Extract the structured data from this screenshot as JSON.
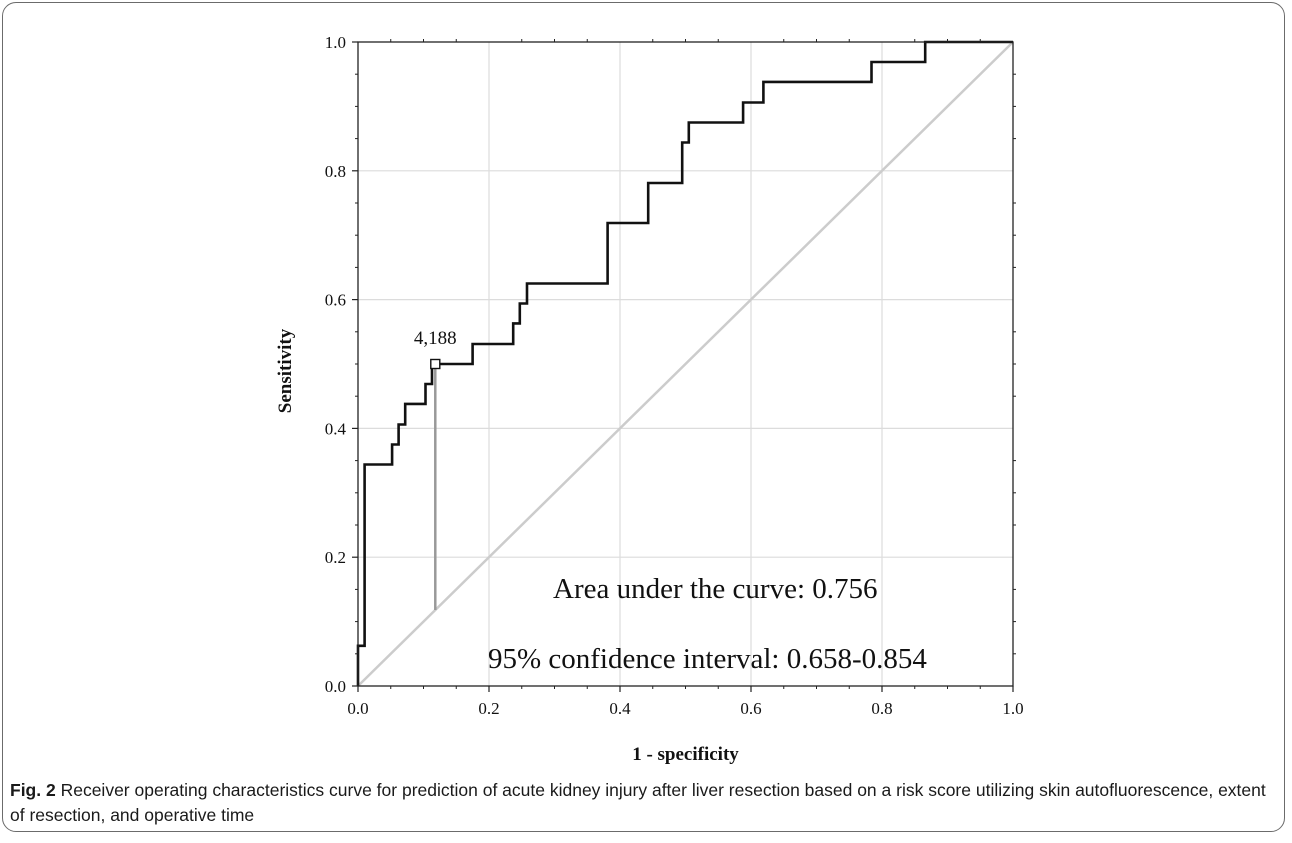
{
  "chart_data": {
    "type": "line",
    "xlabel": "1 - specificity",
    "ylabel": "Sensitivity",
    "xlim": [
      0.0,
      1.0
    ],
    "ylim": [
      0.0,
      1.0
    ],
    "xticks": [
      "0.0",
      "0.2",
      "0.4",
      "0.6",
      "0.8",
      "1.0"
    ],
    "yticks": [
      "0.0",
      "0.2",
      "0.4",
      "0.6",
      "0.8",
      "1.0"
    ],
    "grid": true,
    "series": [
      {
        "points": [
          [
            0.0,
            0.0
          ],
          [
            0.0,
            0.0625
          ],
          [
            0.01,
            0.0625
          ],
          [
            0.01,
            0.344
          ],
          [
            0.052,
            0.344
          ],
          [
            0.052,
            0.375
          ],
          [
            0.062,
            0.375
          ],
          [
            0.062,
            0.406
          ],
          [
            0.072,
            0.406
          ],
          [
            0.072,
            0.438
          ],
          [
            0.103,
            0.438
          ],
          [
            0.103,
            0.469
          ],
          [
            0.113,
            0.469
          ],
          [
            0.113,
            0.5
          ],
          [
            0.175,
            0.5
          ],
          [
            0.175,
            0.531
          ],
          [
            0.237,
            0.531
          ],
          [
            0.237,
            0.563
          ],
          [
            0.247,
            0.563
          ],
          [
            0.247,
            0.594
          ],
          [
            0.258,
            0.594
          ],
          [
            0.258,
            0.625
          ],
          [
            0.381,
            0.625
          ],
          [
            0.381,
            0.719
          ],
          [
            0.443,
            0.719
          ],
          [
            0.443,
            0.781
          ],
          [
            0.495,
            0.781
          ],
          [
            0.495,
            0.844
          ],
          [
            0.505,
            0.844
          ],
          [
            0.505,
            0.875
          ],
          [
            0.588,
            0.875
          ],
          [
            0.588,
            0.906
          ],
          [
            0.619,
            0.906
          ],
          [
            0.619,
            0.938
          ],
          [
            0.784,
            0.938
          ],
          [
            0.784,
            0.969
          ],
          [
            0.866,
            0.969
          ],
          [
            0.866,
            1.0
          ],
          [
            1.0,
            1.0
          ]
        ],
        "color": "#111111"
      }
    ],
    "reference_line": {
      "from": [
        0,
        0
      ],
      "to": [
        1,
        1
      ],
      "color": "#cccccc"
    },
    "cutoff": {
      "label": "4,188",
      "x": 0.118,
      "y": 0.5,
      "drop_to_y": 0.118,
      "color": "#999999"
    },
    "annotations": [
      "Area under the curve: 0.756",
      "95% confidence interval: 0.658-0.854"
    ]
  },
  "caption": {
    "label": "Fig. 2",
    "text": "Receiver operating characteristics curve for prediction of acute kidney injury after liver resection based on a risk score utilizing skin autofluorescence, extent of resection, and operative time"
  }
}
